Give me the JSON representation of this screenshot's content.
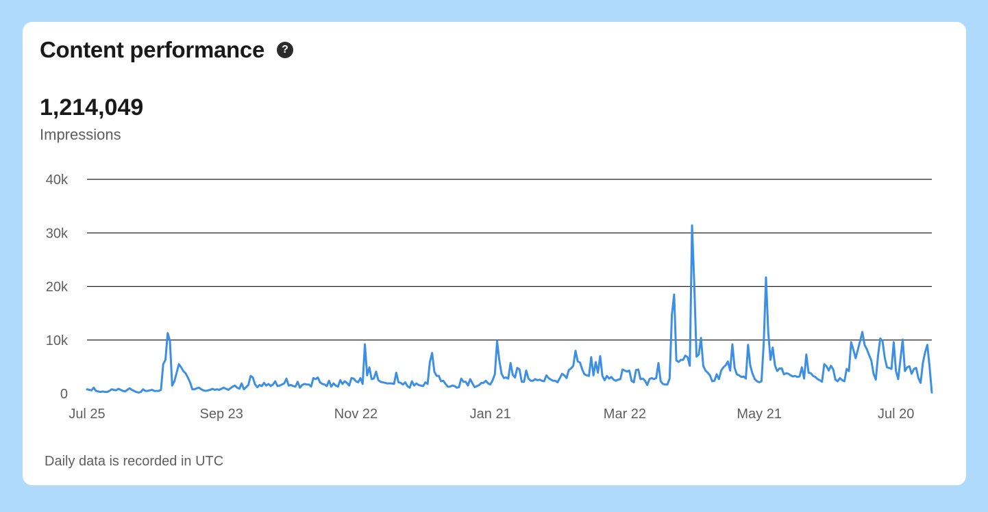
{
  "card": {
    "title": "Content performance",
    "help_icon": "question-mark-circle-icon",
    "metric_value": "1,214,049",
    "metric_label": "Impressions",
    "footnote": "Daily data is recorded in UTC"
  },
  "colors": {
    "background": "#b0dafc",
    "card": "#ffffff",
    "line": "#3d8fe3",
    "grid": "#1f1f1f"
  },
  "chart_data": {
    "type": "line",
    "title": "",
    "xlabel": "",
    "ylabel": "",
    "ylim": [
      0,
      40000
    ],
    "yticks": [
      0,
      10000,
      20000,
      30000,
      40000
    ],
    "ytick_labels": [
      "0",
      "10k",
      "20k",
      "30k",
      "40k"
    ],
    "xtick_labels": [
      "Jul 25",
      "Sep 23",
      "Nov 22",
      "Jan 21",
      "Mar 22",
      "May 21",
      "Jul 20"
    ],
    "xtick_index": [
      0,
      60,
      120,
      180,
      240,
      300,
      361
    ],
    "grid": true,
    "legend": "none",
    "series": [
      {
        "name": "",
        "values": [
          800,
          700,
          600,
          1100,
          500,
          400,
          300,
          400,
          300,
          300,
          500,
          800,
          700,
          600,
          900,
          700,
          500,
          400,
          700,
          1000,
          700,
          500,
          300,
          200,
          300,
          800,
          500,
          500,
          600,
          700,
          500,
          500,
          500,
          700,
          5500,
          6300,
          11300,
          9800,
          1500,
          2300,
          3900,
          5500,
          4900,
          4200,
          3800,
          3000,
          2100,
          800,
          800,
          1000,
          1100,
          800,
          600,
          500,
          600,
          700,
          900,
          700,
          800,
          700,
          900,
          1100,
          900,
          700,
          1000,
          1300,
          1500,
          1100,
          900,
          1900,
          800,
          1200,
          1600,
          3300,
          3000,
          1700,
          1200,
          1600,
          1400,
          2000,
          1500,
          1800,
          1400,
          1700,
          2300,
          1400,
          1500,
          1700,
          1900,
          2800,
          1500,
          1600,
          1400,
          1300,
          2200,
          1100,
          1600,
          1800,
          1700,
          1700,
          1300,
          2900,
          2700,
          3000,
          2100,
          1800,
          1700,
          1400,
          2400,
          1300,
          1900,
          1500,
          1300,
          2500,
          1800,
          2300,
          2000,
          1500,
          2900,
          2800,
          2300,
          2100,
          2900,
          1800,
          9200,
          3400,
          4900,
          2700,
          2800,
          4100,
          2500,
          2200,
          2100,
          2000,
          1900,
          1900,
          1900,
          1800,
          3900,
          2100,
          2000,
          1700,
          2100,
          1400,
          1100,
          2300,
          1500,
          1900,
          1600,
          1500,
          1400,
          2100,
          1800,
          5900,
          7600,
          4100,
          3300,
          3300,
          2300,
          2400,
          1800,
          1300,
          1300,
          1500,
          1400,
          1100,
          1200,
          2800,
          2200,
          2200,
          1500,
          2700,
          1900,
          1200,
          1400,
          1600,
          2000,
          2000,
          2400,
          1900,
          1700,
          2500,
          3600,
          9800,
          6200,
          3700,
          2900,
          3000,
          2800,
          5700,
          3500,
          3000,
          4800,
          4500,
          2200,
          2200,
          4300,
          2800,
          2400,
          2400,
          2700,
          2500,
          2600,
          2400,
          2300,
          3400,
          2900,
          2600,
          2400,
          2400,
          2100,
          2900,
          3700,
          3400,
          2900,
          4400,
          4700,
          5200,
          8000,
          6000,
          5800,
          4500,
          3600,
          3400,
          3300,
          6800,
          3400,
          5900,
          3900,
          7000,
          3300,
          2500,
          3300,
          2800,
          3100,
          2600,
          2400,
          2600,
          2700,
          4500,
          4300,
          4100,
          4300,
          2400,
          2100,
          4400,
          4500,
          2700,
          2800,
          2400,
          1600,
          2700,
          2900,
          2700,
          2900,
          5700,
          2300,
          1800,
          1700,
          1700,
          2800,
          14700,
          18500,
          6200,
          5900,
          6300,
          6300,
          7100,
          6800,
          5200,
          31400,
          20300,
          6900,
          7300,
          10400,
          5200,
          4300,
          3900,
          3400,
          2300,
          2400,
          3600,
          2700,
          4300,
          4900,
          5300,
          6000,
          4300,
          9200,
          4800,
          3600,
          3400,
          3100,
          3200,
          2800,
          9100,
          5200,
          3700,
          2700,
          2300,
          2100,
          2300,
          9500,
          21700,
          11500,
          6300,
          8600,
          5300,
          4200,
          4700,
          4700,
          3600,
          3800,
          3700,
          3400,
          3200,
          3300,
          3100,
          3200,
          4900,
          2800,
          7300,
          3900,
          3800,
          3300,
          3100,
          2700,
          2500,
          2200,
          5500,
          5100,
          4300,
          5200,
          4500,
          2600,
          2300,
          2900,
          2500,
          2300,
          4600,
          4200,
          9600,
          8200,
          6600,
          8200,
          9800,
          11500,
          9100,
          8300,
          7200,
          6200,
          3700,
          2600,
          7100,
          10300,
          9800,
          6700,
          4900,
          4800,
          4600,
          9600,
          4200,
          2700,
          6400,
          10100,
          4200,
          4900,
          5100,
          3700,
          4600,
          4800,
          2900,
          2000,
          5700,
          7700,
          9100,
          5000,
          200
        ]
      }
    ]
  }
}
